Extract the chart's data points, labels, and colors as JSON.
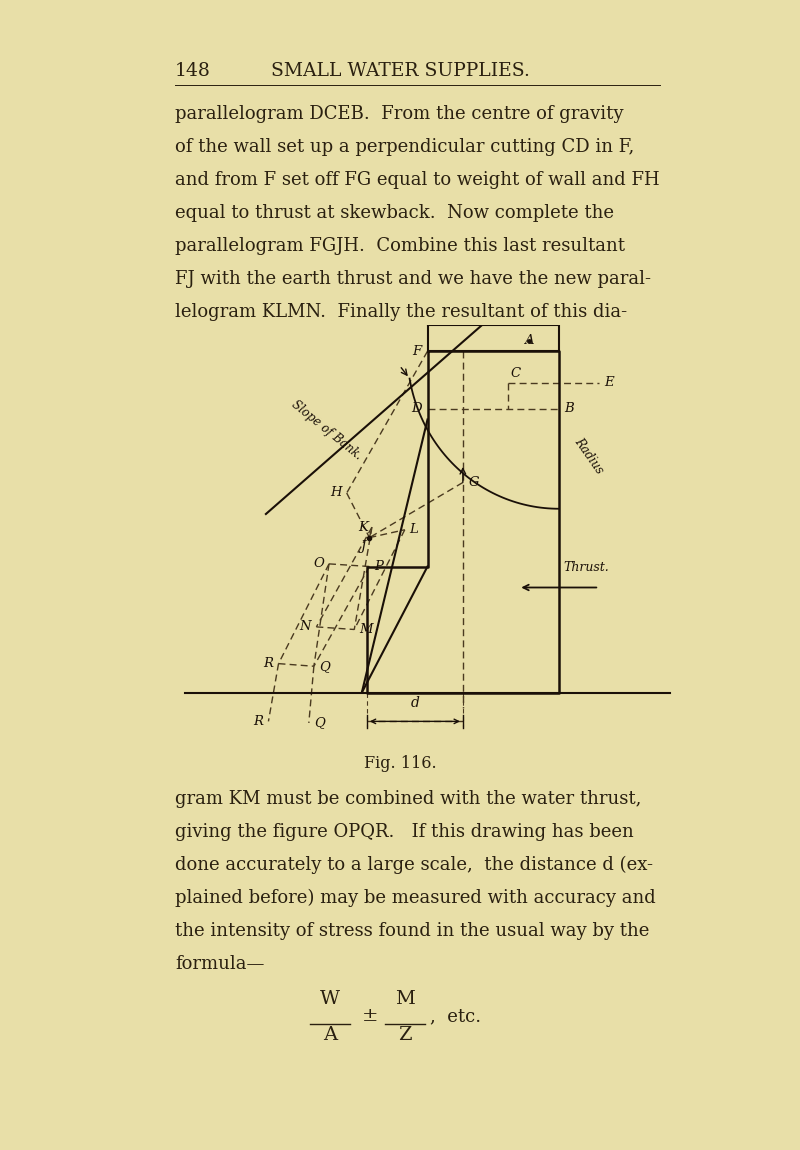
{
  "bg_color": "#e8dfa8",
  "text_color": "#2a2010",
  "dark_color": "#1a1008",
  "line_color": "#1a1008",
  "dashed_color": "#4a3a20",
  "page_number": "148",
  "header_title": "SMALL WATER SUPPLIES.",
  "para1_lines": [
    "parallelogram DCEB.  From the centre of gravity",
    "of the wall set up a perpendicular cutting CD in F,",
    "and from F set off FG equal to weight of wall and FH",
    "equal to thrust at skewback.  Now complete the",
    "parallelogram FGJH.  Combine this last resultant",
    "FJ with the earth thrust and we have the new paral-",
    "lelogram KLMN.  Finally the resultant of this dia-"
  ],
  "fig_caption": "Fig. 116.",
  "para2_lines": [
    "gram KM must be combined with the water thrust,",
    "giving the figure OPQR.   If this drawing has been",
    "done accurately to a large scale,  the distance d (ex-",
    "plained before) may be measured with accuracy and",
    "the intensity of stress found in the usual way by the",
    "formula—"
  ]
}
